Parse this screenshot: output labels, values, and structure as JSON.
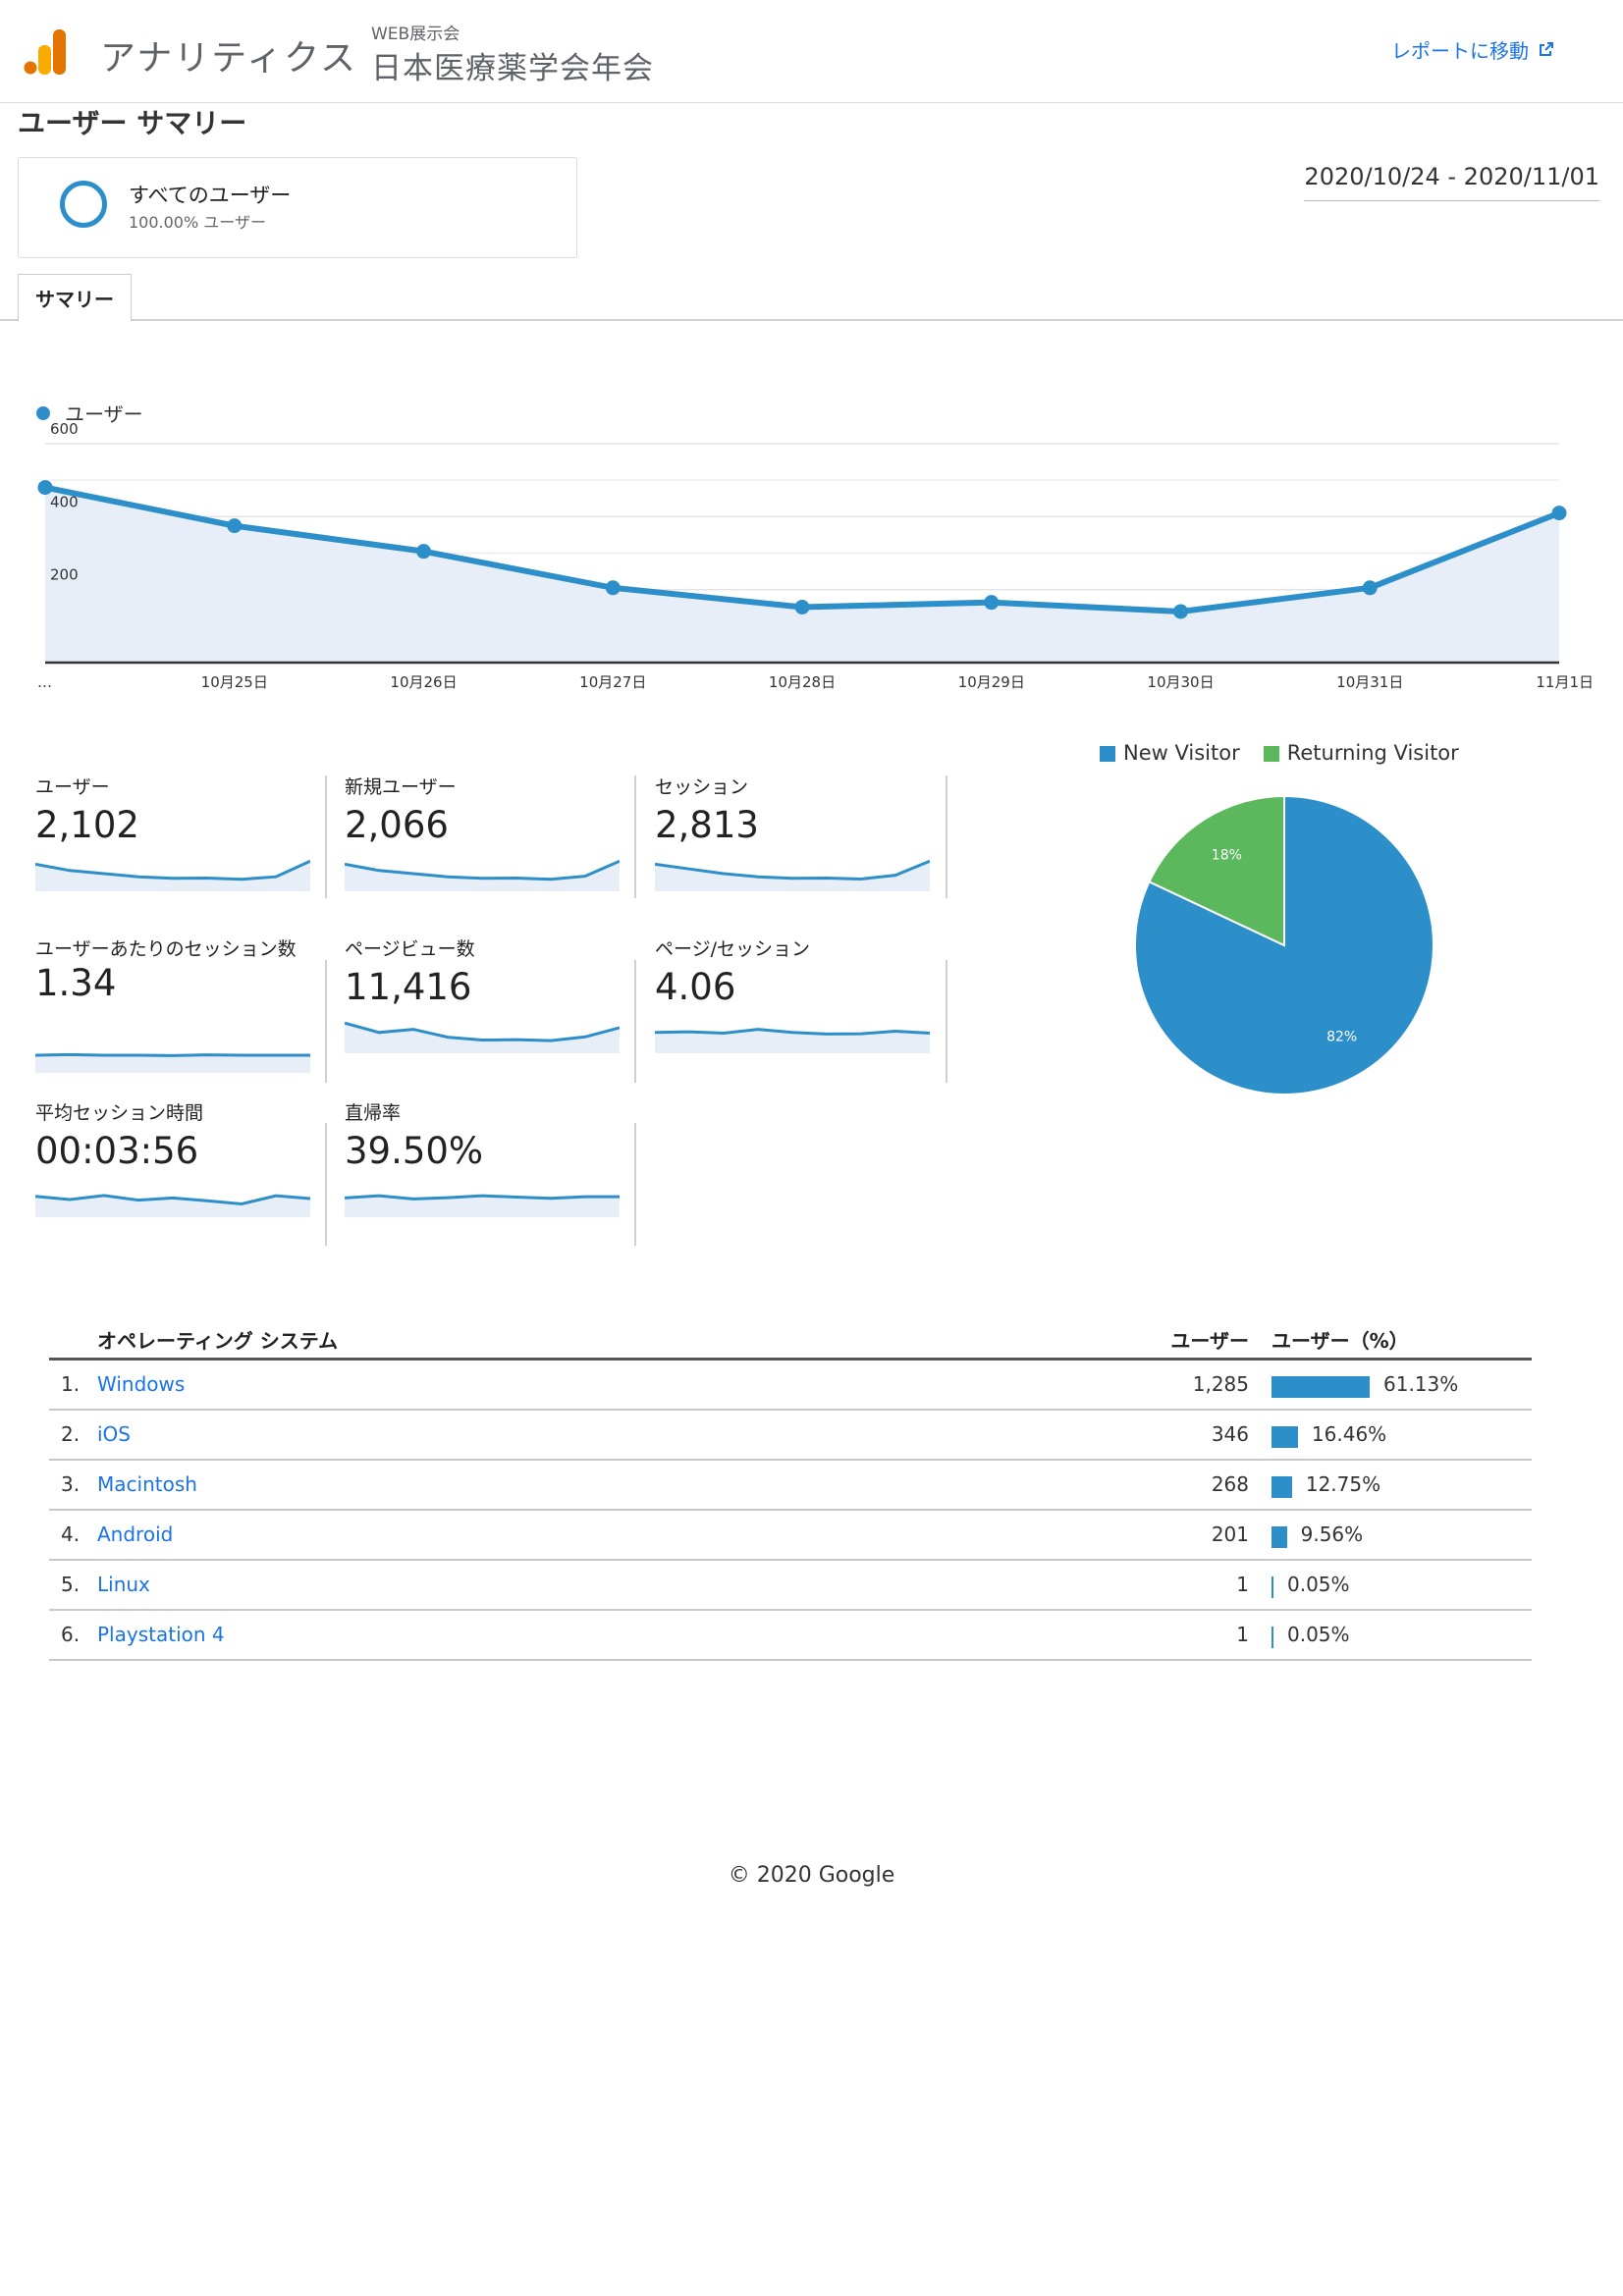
{
  "header": {
    "app_title": "アナリティクス",
    "account_sub": "WEB展示会",
    "account_name": "日本医療薬学会年会",
    "report_link": "レポートに移動",
    "page_title": "ユーザー サマリー"
  },
  "segment": {
    "name": "すべてのユーザー",
    "pct": "100.00% ユーザー"
  },
  "daterange": "2020/10/24 - 2020/11/01",
  "tabs": [
    {
      "label": "サマリー"
    }
  ],
  "colors": {
    "primary": "#2d8fc9",
    "secondary": "#5cb85c",
    "link": "#1a73e8"
  },
  "chart_data": [
    {
      "type": "line",
      "legend": "ユーザー",
      "x": [
        "…",
        "10月25日",
        "10月26日",
        "10月27日",
        "10月28日",
        "10月29日",
        "10月30日",
        "10月31日",
        "11月1日"
      ],
      "series": [
        {
          "name": "ユーザー",
          "values": [
            480,
            375,
            305,
            205,
            152,
            165,
            140,
            205,
            410
          ]
        }
      ],
      "y_ticks": [
        200,
        400,
        600
      ],
      "ylim": [
        0,
        600
      ],
      "grid": true,
      "area_fill": true
    },
    {
      "type": "pie",
      "legend_placement": "top",
      "slices": [
        {
          "label": "New Visitor",
          "value": 82,
          "display": "82%"
        },
        {
          "label": "Returning Visitor",
          "value": 18,
          "display": "18%"
        }
      ]
    }
  ],
  "metrics": [
    {
      "label": "ユーザー",
      "value": "2,102",
      "trend": [
        8,
        6,
        5,
        4,
        3.5,
        3.6,
        3.2,
        4,
        9
      ]
    },
    {
      "label": "新規ユーザー",
      "value": "2,066",
      "trend": [
        8,
        6,
        5,
        4,
        3.5,
        3.6,
        3.2,
        4.2,
        9
      ]
    },
    {
      "label": "セッション",
      "value": "2,813",
      "trend": [
        8,
        6.5,
        5,
        4,
        3.5,
        3.6,
        3.3,
        4.5,
        9
      ]
    },
    {
      "label": "ユーザーあたりのセッション数",
      "value": "1.34",
      "trend": [
        5,
        5.2,
        5,
        5,
        4.9,
        5.1,
        5,
        5,
        5
      ]
    },
    {
      "label": "ページビュー数",
      "value": "11,416",
      "trend": [
        9,
        6,
        7,
        4.5,
        3.6,
        3.7,
        3.4,
        4.6,
        7.5
      ]
    },
    {
      "label": "ページ/セッション",
      "value": "4.06",
      "trend": [
        6,
        6.2,
        5.8,
        7,
        6,
        5.5,
        5.6,
        6.4,
        5.8
      ]
    },
    {
      "label": "平均セッション時間",
      "value": "00:03:56",
      "trend": [
        6,
        5,
        6.3,
        4.8,
        5.5,
        4.6,
        3.6,
        6.2,
        5.3
      ]
    },
    {
      "label": "直帰率",
      "value": "39.50%",
      "trend": [
        5.5,
        6.2,
        5.2,
        5.6,
        6.2,
        5.8,
        5.4,
        5.9,
        5.9
      ]
    }
  ],
  "os_table": {
    "headers": {
      "name": "オペレーティング システム",
      "users": "ユーザー",
      "pct": "ユーザー（%）"
    },
    "rows": [
      {
        "rank": "1.",
        "name": "Windows",
        "users": "1,285",
        "pct": "61.13%",
        "pct_value": 61.13
      },
      {
        "rank": "2.",
        "name": "iOS",
        "users": "346",
        "pct": "16.46%",
        "pct_value": 16.46
      },
      {
        "rank": "3.",
        "name": "Macintosh",
        "users": "268",
        "pct": "12.75%",
        "pct_value": 12.75
      },
      {
        "rank": "4.",
        "name": "Android",
        "users": "201",
        "pct": "9.56%",
        "pct_value": 9.56
      },
      {
        "rank": "5.",
        "name": "Linux",
        "users": "1",
        "pct": "0.05%",
        "pct_value": 0.05
      },
      {
        "rank": "6.",
        "name": "Playstation 4",
        "users": "1",
        "pct": "0.05%",
        "pct_value": 0.05
      }
    ]
  },
  "footer": "© 2020 Google"
}
